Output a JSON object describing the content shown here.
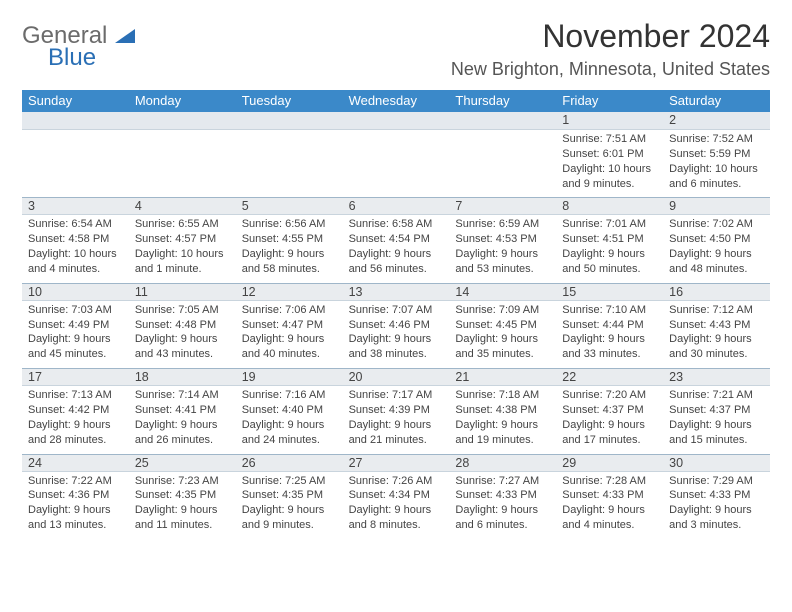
{
  "logo": {
    "text_gray": "General",
    "text_blue": "Blue"
  },
  "header": {
    "month_title": "November 2024",
    "location": "New Brighton, Minnesota, United States"
  },
  "colors": {
    "header_bg": "#3b89c9",
    "daynum_bg": "#e9ecef",
    "border": "#9fb6c9",
    "text": "#333333",
    "logo_gray": "#6b6b6b",
    "logo_blue": "#2a6fb5"
  },
  "day_names": [
    "Sunday",
    "Monday",
    "Tuesday",
    "Wednesday",
    "Thursday",
    "Friday",
    "Saturday"
  ],
  "weeks": [
    [
      {
        "n": "",
        "d": ""
      },
      {
        "n": "",
        "d": ""
      },
      {
        "n": "",
        "d": ""
      },
      {
        "n": "",
        "d": ""
      },
      {
        "n": "",
        "d": ""
      },
      {
        "n": "1",
        "d": "Sunrise: 7:51 AM\nSunset: 6:01 PM\nDaylight: 10 hours and 9 minutes."
      },
      {
        "n": "2",
        "d": "Sunrise: 7:52 AM\nSunset: 5:59 PM\nDaylight: 10 hours and 6 minutes."
      }
    ],
    [
      {
        "n": "3",
        "d": "Sunrise: 6:54 AM\nSunset: 4:58 PM\nDaylight: 10 hours and 4 minutes."
      },
      {
        "n": "4",
        "d": "Sunrise: 6:55 AM\nSunset: 4:57 PM\nDaylight: 10 hours and 1 minute."
      },
      {
        "n": "5",
        "d": "Sunrise: 6:56 AM\nSunset: 4:55 PM\nDaylight: 9 hours and 58 minutes."
      },
      {
        "n": "6",
        "d": "Sunrise: 6:58 AM\nSunset: 4:54 PM\nDaylight: 9 hours and 56 minutes."
      },
      {
        "n": "7",
        "d": "Sunrise: 6:59 AM\nSunset: 4:53 PM\nDaylight: 9 hours and 53 minutes."
      },
      {
        "n": "8",
        "d": "Sunrise: 7:01 AM\nSunset: 4:51 PM\nDaylight: 9 hours and 50 minutes."
      },
      {
        "n": "9",
        "d": "Sunrise: 7:02 AM\nSunset: 4:50 PM\nDaylight: 9 hours and 48 minutes."
      }
    ],
    [
      {
        "n": "10",
        "d": "Sunrise: 7:03 AM\nSunset: 4:49 PM\nDaylight: 9 hours and 45 minutes."
      },
      {
        "n": "11",
        "d": "Sunrise: 7:05 AM\nSunset: 4:48 PM\nDaylight: 9 hours and 43 minutes."
      },
      {
        "n": "12",
        "d": "Sunrise: 7:06 AM\nSunset: 4:47 PM\nDaylight: 9 hours and 40 minutes."
      },
      {
        "n": "13",
        "d": "Sunrise: 7:07 AM\nSunset: 4:46 PM\nDaylight: 9 hours and 38 minutes."
      },
      {
        "n": "14",
        "d": "Sunrise: 7:09 AM\nSunset: 4:45 PM\nDaylight: 9 hours and 35 minutes."
      },
      {
        "n": "15",
        "d": "Sunrise: 7:10 AM\nSunset: 4:44 PM\nDaylight: 9 hours and 33 minutes."
      },
      {
        "n": "16",
        "d": "Sunrise: 7:12 AM\nSunset: 4:43 PM\nDaylight: 9 hours and 30 minutes."
      }
    ],
    [
      {
        "n": "17",
        "d": "Sunrise: 7:13 AM\nSunset: 4:42 PM\nDaylight: 9 hours and 28 minutes."
      },
      {
        "n": "18",
        "d": "Sunrise: 7:14 AM\nSunset: 4:41 PM\nDaylight: 9 hours and 26 minutes."
      },
      {
        "n": "19",
        "d": "Sunrise: 7:16 AM\nSunset: 4:40 PM\nDaylight: 9 hours and 24 minutes."
      },
      {
        "n": "20",
        "d": "Sunrise: 7:17 AM\nSunset: 4:39 PM\nDaylight: 9 hours and 21 minutes."
      },
      {
        "n": "21",
        "d": "Sunrise: 7:18 AM\nSunset: 4:38 PM\nDaylight: 9 hours and 19 minutes."
      },
      {
        "n": "22",
        "d": "Sunrise: 7:20 AM\nSunset: 4:37 PM\nDaylight: 9 hours and 17 minutes."
      },
      {
        "n": "23",
        "d": "Sunrise: 7:21 AM\nSunset: 4:37 PM\nDaylight: 9 hours and 15 minutes."
      }
    ],
    [
      {
        "n": "24",
        "d": "Sunrise: 7:22 AM\nSunset: 4:36 PM\nDaylight: 9 hours and 13 minutes."
      },
      {
        "n": "25",
        "d": "Sunrise: 7:23 AM\nSunset: 4:35 PM\nDaylight: 9 hours and 11 minutes."
      },
      {
        "n": "26",
        "d": "Sunrise: 7:25 AM\nSunset: 4:35 PM\nDaylight: 9 hours and 9 minutes."
      },
      {
        "n": "27",
        "d": "Sunrise: 7:26 AM\nSunset: 4:34 PM\nDaylight: 9 hours and 8 minutes."
      },
      {
        "n": "28",
        "d": "Sunrise: 7:27 AM\nSunset: 4:33 PM\nDaylight: 9 hours and 6 minutes."
      },
      {
        "n": "29",
        "d": "Sunrise: 7:28 AM\nSunset: 4:33 PM\nDaylight: 9 hours and 4 minutes."
      },
      {
        "n": "30",
        "d": "Sunrise: 7:29 AM\nSunset: 4:33 PM\nDaylight: 9 hours and 3 minutes."
      }
    ]
  ]
}
